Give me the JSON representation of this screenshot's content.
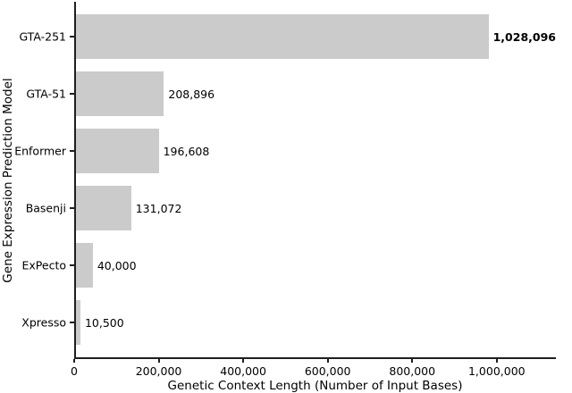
{
  "chart_data": {
    "type": "bar",
    "orientation": "horizontal",
    "title": "",
    "categories": [
      "GTA-251",
      "GTA-51",
      "Enformer",
      "Basenji",
      "ExPecto",
      "Xpresso"
    ],
    "values": [
      1028096,
      208896,
      196608,
      131072,
      40000,
      10500
    ],
    "value_labels": [
      "1,028,096",
      "208,896",
      "196,608",
      "131,072",
      "40,000",
      "10,500"
    ],
    "bold_value_labels": [
      true,
      false,
      false,
      false,
      false,
      false
    ],
    "xlabel": "Genetic Context Length (Number of Input Bases)",
    "ylabel": "Gene Expression Prediction Model",
    "xlim": [
      0,
      1140000
    ],
    "x_ticks": [
      0,
      200000,
      400000,
      600000,
      800000,
      1000000
    ],
    "x_tick_labels": [
      "0",
      "200,000",
      "400,000",
      "600,000",
      "800,000",
      "1,000,000"
    ],
    "grid": false,
    "legend": null,
    "bar_color": "#cbcbcb",
    "axis_color": "#1f1f1f",
    "text_color": "#000000",
    "background_color": "#ffffff"
  }
}
